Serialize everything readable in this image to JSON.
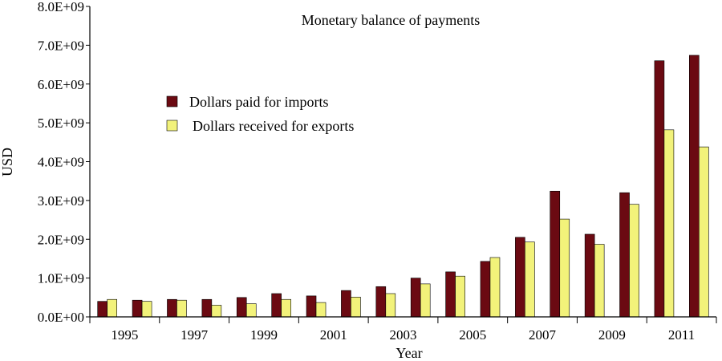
{
  "chart_data": {
    "type": "bar",
    "title": "Monetary balance of payments",
    "xlabel": "Year",
    "ylabel": "USD",
    "ylim": [
      0,
      8000000000
    ],
    "yticks": [
      0,
      1000000000,
      2000000000,
      3000000000,
      4000000000,
      5000000000,
      6000000000,
      7000000000,
      8000000000
    ],
    "ytick_labels": [
      "0.0E+00",
      "1.0E+09",
      "2.0E+09",
      "3.0E+09",
      "4.0E+09",
      "5.0E+09",
      "6.0E+09",
      "7.0E+09",
      "8.0E+09"
    ],
    "categories": [
      "1995",
      "1996",
      "1997",
      "1998",
      "1999",
      "2000",
      "2001",
      "2002",
      "2003",
      "2004",
      "2005",
      "2006",
      "2007",
      "2008",
      "2009",
      "2010",
      "2011",
      "2012"
    ],
    "xtick_labels": [
      "1995",
      "",
      "1997",
      "",
      "1999",
      "",
      "2001",
      "",
      "2003",
      "",
      "2005",
      "",
      "2007",
      "",
      "2009",
      "",
      "2011",
      ""
    ],
    "series": [
      {
        "name": "Dollars paid for imports",
        "color": "#6B0A12",
        "values": [
          400000000,
          430000000,
          450000000,
          450000000,
          500000000,
          600000000,
          540000000,
          680000000,
          780000000,
          1000000000,
          1160000000,
          1430000000,
          2050000000,
          3240000000,
          2130000000,
          3200000000,
          6600000000,
          6740000000
        ]
      },
      {
        "name": "Dollars received for exports",
        "color": "#F2F27A",
        "values": [
          450000000,
          400000000,
          430000000,
          300000000,
          340000000,
          450000000,
          370000000,
          510000000,
          600000000,
          850000000,
          1050000000,
          1530000000,
          1930000000,
          2520000000,
          1870000000,
          2900000000,
          4820000000,
          4380000000
        ]
      }
    ],
    "legend_position": "upper-left-inside",
    "grid": false
  }
}
